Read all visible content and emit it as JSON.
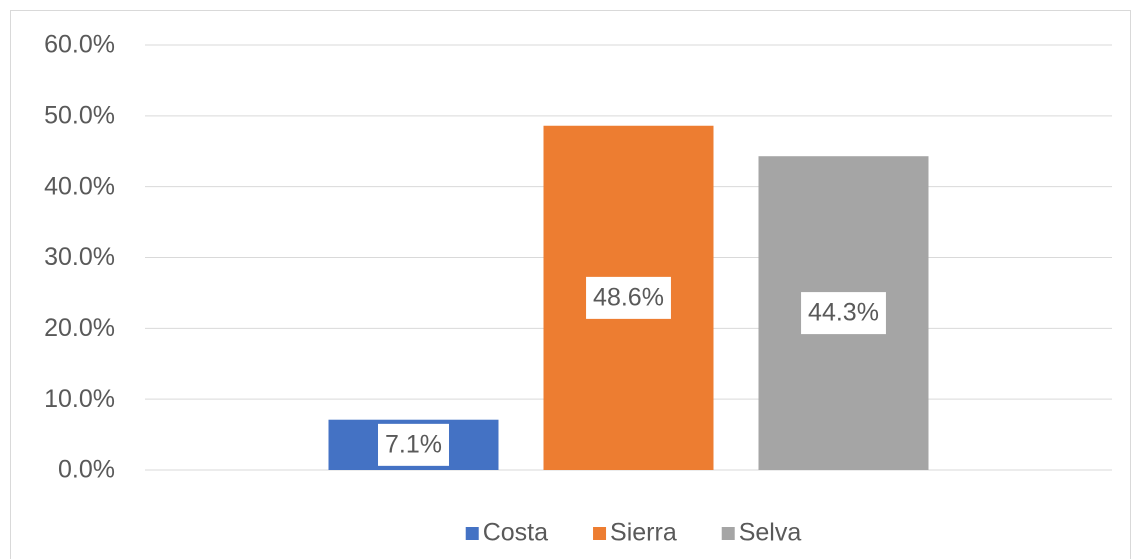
{
  "chart_data": {
    "type": "bar",
    "categories": [
      null
    ],
    "series": [
      {
        "name": "Costa",
        "color": "#4472c4",
        "values": [
          7.1
        ],
        "value_labels": [
          "7.1%"
        ]
      },
      {
        "name": "Sierra",
        "color": "#ed7d31",
        "values": [
          48.6
        ],
        "value_labels": [
          "48.6%"
        ]
      },
      {
        "name": "Selva",
        "color": "#a5a5a5",
        "values": [
          44.3
        ],
        "value_labels": [
          "44.3%"
        ]
      }
    ],
    "ylim": [
      0,
      60
    ],
    "yticks": [
      {
        "value": 0,
        "label": "0.0%"
      },
      {
        "value": 10,
        "label": "10.0%"
      },
      {
        "value": 20,
        "label": "20.0%"
      },
      {
        "value": 30,
        "label": "30.0%"
      },
      {
        "value": 40,
        "label": "40.0%"
      },
      {
        "value": 50,
        "label": "50.0%"
      },
      {
        "value": 60,
        "label": "60.0%"
      }
    ],
    "grid": true,
    "legend": "bottom"
  }
}
